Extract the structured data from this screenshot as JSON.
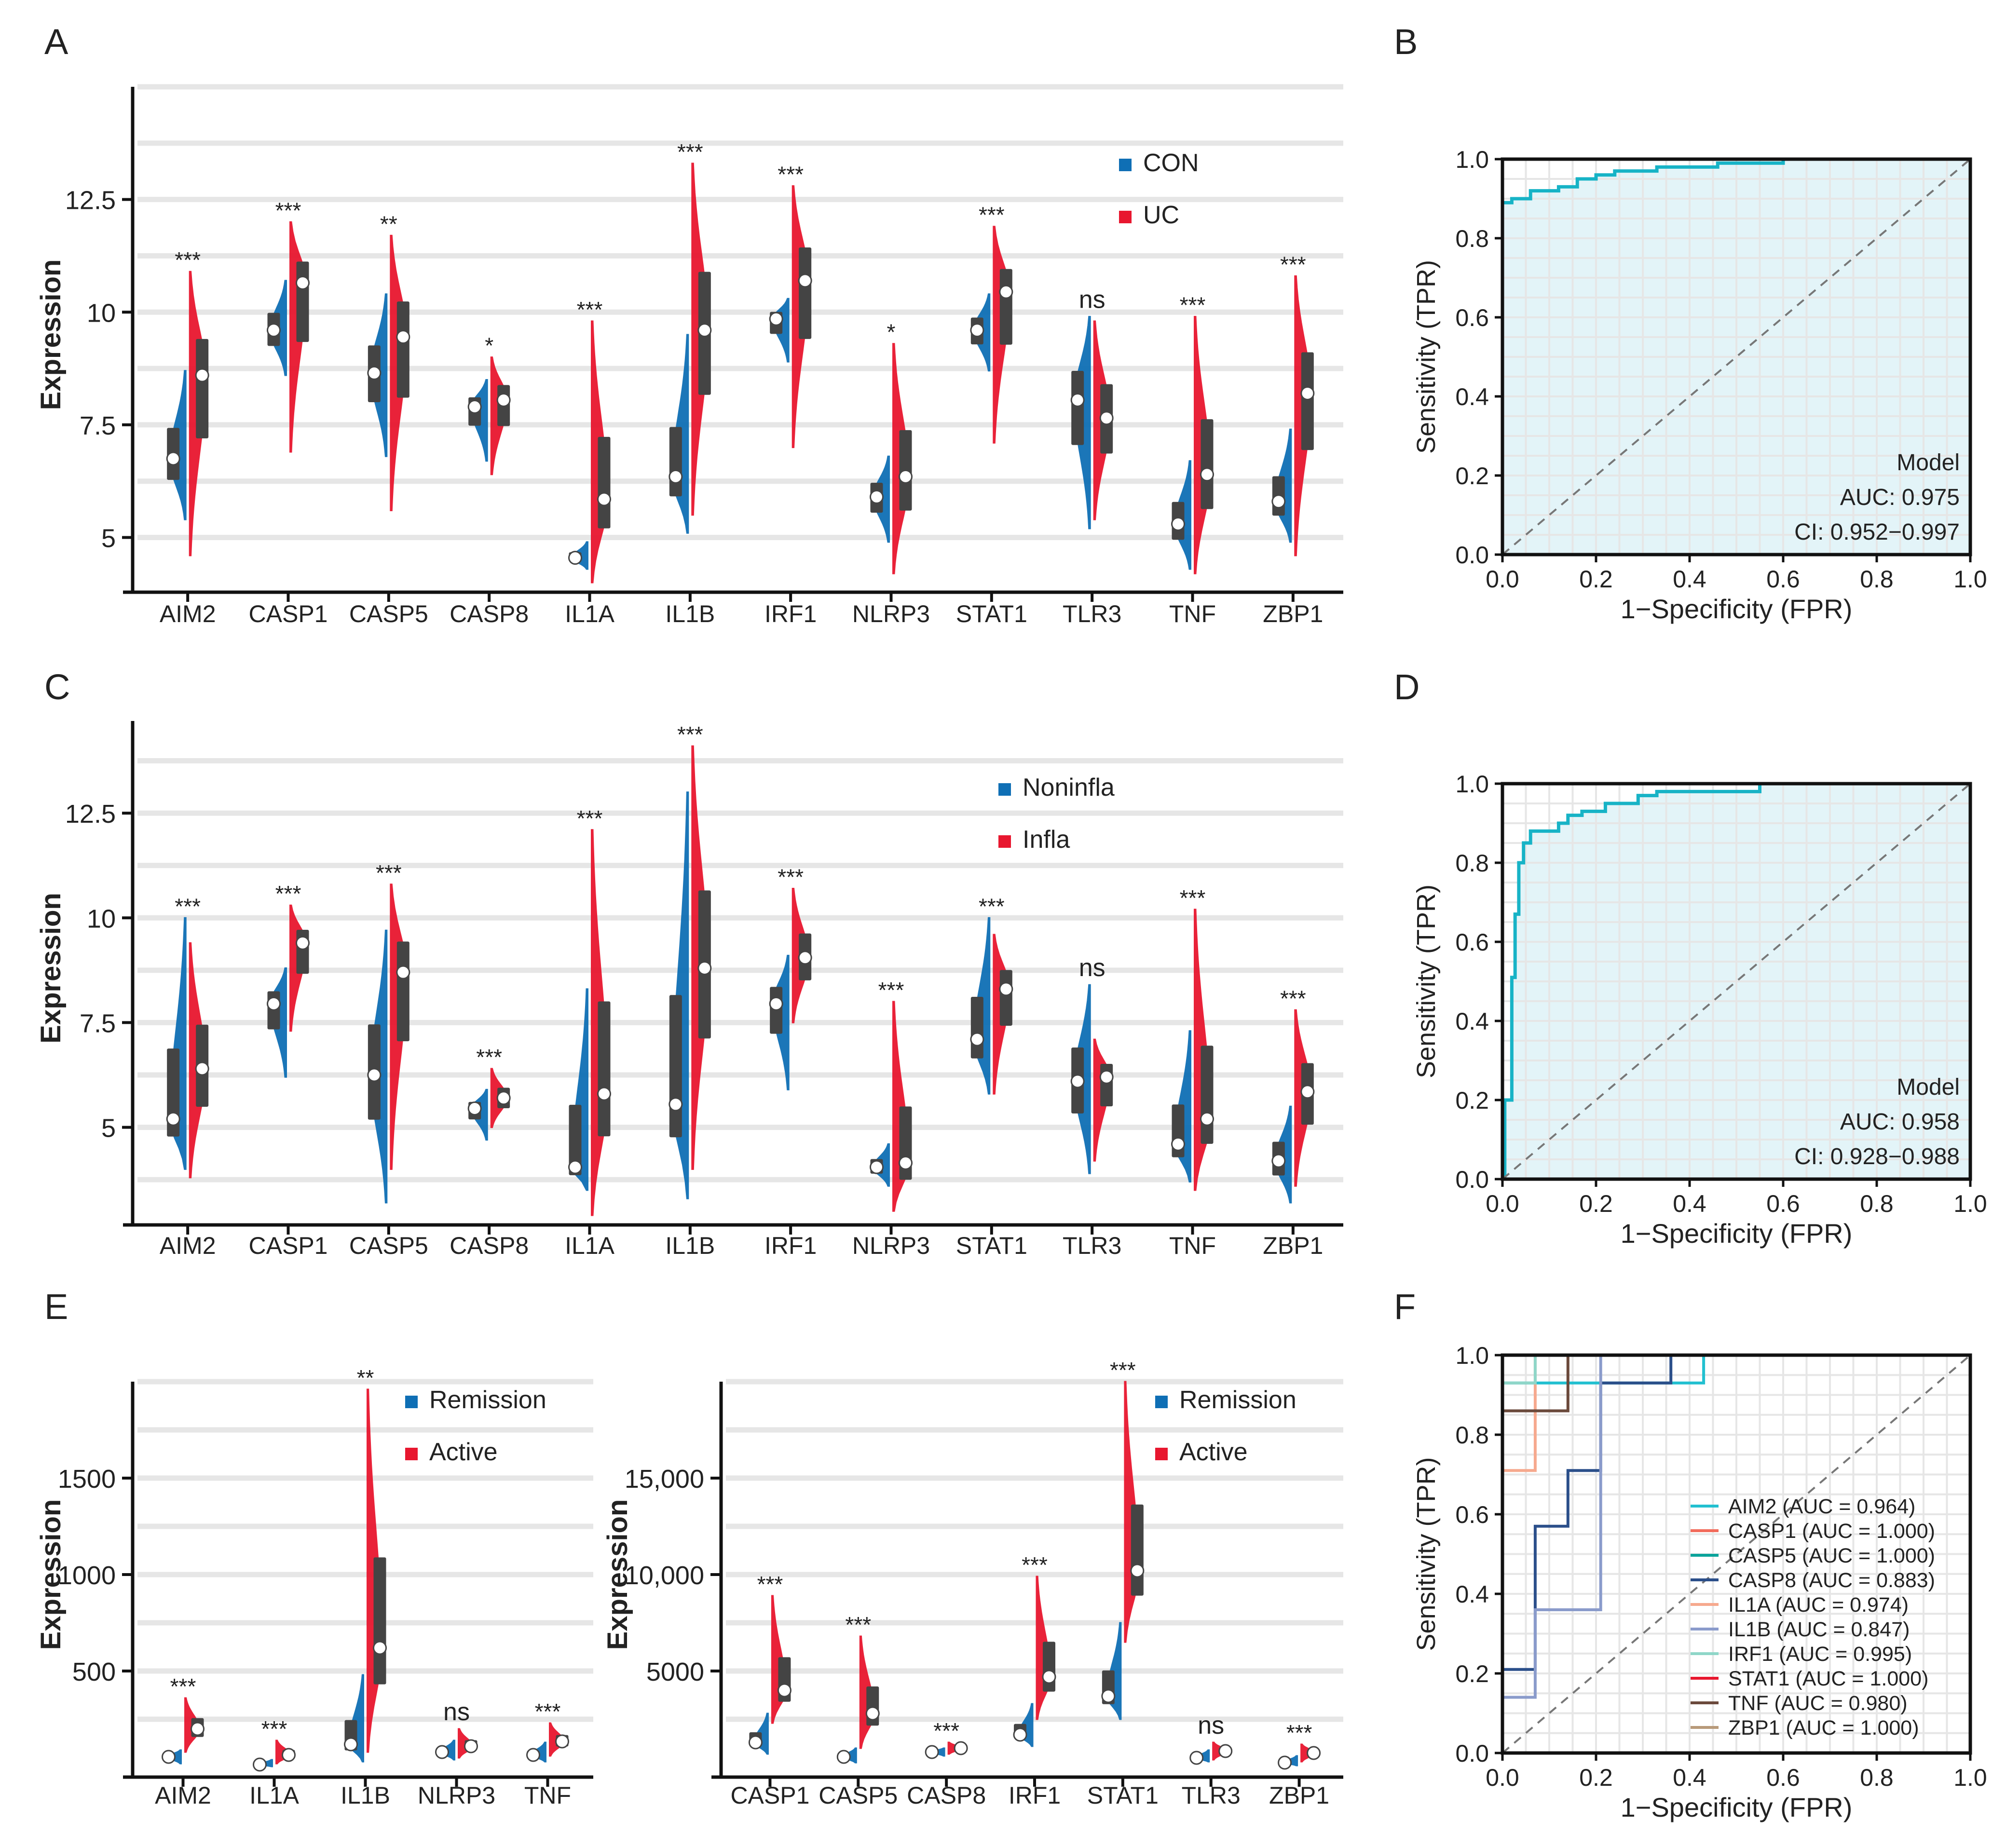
{
  "panels": {
    "A": {
      "letter": "A"
    },
    "B": {
      "letter": "B"
    },
    "C": {
      "letter": "C"
    },
    "D": {
      "letter": "D"
    },
    "E": {
      "letter": "E"
    },
    "F": {
      "letter": "F"
    }
  },
  "chart_data": [
    {
      "id": "A",
      "type": "split-violin",
      "ylabel": "Expression",
      "ylim": [
        4.0,
        15.0
      ],
      "yticks": [
        5,
        7.5,
        10,
        12.5
      ],
      "ytick_labels": [
        "5",
        "7.5",
        "10",
        "12.5"
      ],
      "legend": [
        "CON",
        "UC"
      ],
      "legend_position": "top-right",
      "group_colors": [
        "#0f6fb5",
        "#e8172f"
      ],
      "categories": [
        "AIM2",
        "CASP1",
        "CASP5",
        "CASP8",
        "IL1A",
        "IL1B",
        "IRF1",
        "NLRP3",
        "STAT1",
        "TLR3",
        "TNF",
        "ZBP1"
      ],
      "significance": [
        "***",
        "***",
        "**",
        "*",
        "***",
        "***",
        "***",
        "*",
        "***",
        "ns",
        "***",
        "***"
      ],
      "series": [
        {
          "name": "CON",
          "median": [
            6.75,
            9.6,
            8.65,
            7.9,
            4.55,
            6.35,
            9.85,
            5.9,
            9.6,
            8.05,
            5.3,
            5.8
          ],
          "min": [
            5.4,
            8.6,
            6.8,
            6.7,
            4.3,
            5.1,
            8.9,
            4.9,
            8.7,
            5.2,
            4.3,
            4.9
          ],
          "max": [
            8.7,
            10.7,
            10.4,
            8.5,
            4.9,
            9.5,
            10.3,
            6.8,
            10.4,
            9.9,
            6.7,
            7.4
          ]
        },
        {
          "name": "UC",
          "median": [
            8.6,
            10.65,
            9.45,
            8.05,
            5.85,
            9.6,
            10.7,
            6.35,
            10.45,
            7.65,
            6.4,
            8.2
          ],
          "min": [
            4.6,
            6.9,
            5.6,
            6.4,
            4.0,
            5.5,
            7.0,
            4.2,
            7.1,
            5.4,
            4.2,
            4.6
          ],
          "max": [
            10.9,
            12.0,
            11.7,
            9.0,
            9.8,
            13.3,
            12.8,
            9.3,
            11.9,
            9.8,
            9.9,
            10.8
          ]
        }
      ]
    },
    {
      "id": "B",
      "type": "roc",
      "xlabel": "1−Specificity (FPR)",
      "ylabel": "Sensitivity (TPR)",
      "xlim": [
        0,
        1
      ],
      "ylim": [
        0,
        1
      ],
      "ticks": [
        "0.0",
        "0.2",
        "0.4",
        "0.6",
        "0.8",
        "1.0"
      ],
      "annotation": [
        "Model",
        "AUC: 0.975",
        "CI: 0.952−0.997"
      ],
      "curve_color": "#17b3c6",
      "fill_color": "#e3f4f8",
      "curve": [
        [
          0,
          0
        ],
        [
          0,
          0.89
        ],
        [
          0.02,
          0.89
        ],
        [
          0.02,
          0.9
        ],
        [
          0.06,
          0.9
        ],
        [
          0.06,
          0.92
        ],
        [
          0.12,
          0.92
        ],
        [
          0.12,
          0.93
        ],
        [
          0.16,
          0.93
        ],
        [
          0.16,
          0.95
        ],
        [
          0.2,
          0.95
        ],
        [
          0.2,
          0.96
        ],
        [
          0.24,
          0.96
        ],
        [
          0.24,
          0.97
        ],
        [
          0.33,
          0.97
        ],
        [
          0.33,
          0.98
        ],
        [
          0.46,
          0.98
        ],
        [
          0.46,
          0.99
        ],
        [
          0.6,
          0.99
        ],
        [
          0.6,
          1.0
        ],
        [
          1.0,
          1.0
        ]
      ]
    },
    {
      "id": "C",
      "type": "split-violin",
      "ylabel": "Expression",
      "ylim": [
        2.9,
        14.7
      ],
      "yticks": [
        5,
        7.5,
        10,
        12.5
      ],
      "ytick_labels": [
        "5",
        "7.5",
        "10",
        "12.5"
      ],
      "legend": [
        "Noninfla",
        "Infla"
      ],
      "legend_position": "top-right",
      "group_colors": [
        "#0f6fb5",
        "#e8172f"
      ],
      "categories": [
        "AIM2",
        "CASP1",
        "CASP5",
        "CASP8",
        "IL1A",
        "IL1B",
        "IRF1",
        "NLRP3",
        "STAT1",
        "TLR3",
        "TNF",
        "ZBP1"
      ],
      "significance": [
        "***",
        "***",
        "***",
        "***",
        "***",
        "***",
        "***",
        "***",
        "***",
        "ns",
        "***",
        "***"
      ],
      "series": [
        {
          "name": "Noninfla",
          "median": [
            5.2,
            7.95,
            6.25,
            5.45,
            4.05,
            5.55,
            7.95,
            4.05,
            7.1,
            6.1,
            4.6,
            4.2
          ],
          "min": [
            4.0,
            6.2,
            3.2,
            4.7,
            3.5,
            3.3,
            5.9,
            3.6,
            5.8,
            3.9,
            3.7,
            3.2
          ],
          "max": [
            10.0,
            8.8,
            9.7,
            5.9,
            8.3,
            13.0,
            9.1,
            4.6,
            10.0,
            8.4,
            7.3,
            5.5
          ]
        },
        {
          "name": "Infla",
          "median": [
            6.4,
            9.4,
            8.7,
            5.7,
            5.8,
            8.8,
            9.05,
            4.15,
            8.3,
            6.2,
            5.2,
            5.85
          ],
          "min": [
            3.8,
            7.3,
            4.0,
            5.0,
            2.9,
            4.0,
            7.5,
            3.0,
            5.8,
            4.2,
            3.5,
            3.6
          ],
          "max": [
            9.4,
            10.3,
            10.8,
            6.4,
            12.1,
            14.1,
            10.7,
            8.0,
            9.6,
            7.1,
            10.2,
            7.8
          ]
        }
      ]
    },
    {
      "id": "D",
      "type": "roc",
      "xlabel": "1−Specificity (FPR)",
      "ylabel": "Sensitivity (TPR)",
      "xlim": [
        0,
        1
      ],
      "ylim": [
        0,
        1
      ],
      "ticks": [
        "0.0",
        "0.2",
        "0.4",
        "0.6",
        "0.8",
        "1.0"
      ],
      "annotation": [
        "Model",
        "AUC: 0.958",
        "CI: 0.928−0.988"
      ],
      "curve_color": "#17b3c6",
      "fill_color": "#e3f4f8",
      "curve": [
        [
          0,
          0
        ],
        [
          0.005,
          0.0
        ],
        [
          0.005,
          0.2
        ],
        [
          0.02,
          0.2
        ],
        [
          0.02,
          0.51
        ],
        [
          0.027,
          0.51
        ],
        [
          0.027,
          0.67
        ],
        [
          0.035,
          0.67
        ],
        [
          0.035,
          0.8
        ],
        [
          0.045,
          0.8
        ],
        [
          0.045,
          0.85
        ],
        [
          0.06,
          0.85
        ],
        [
          0.06,
          0.88
        ],
        [
          0.12,
          0.88
        ],
        [
          0.12,
          0.9
        ],
        [
          0.14,
          0.9
        ],
        [
          0.14,
          0.92
        ],
        [
          0.17,
          0.92
        ],
        [
          0.17,
          0.93
        ],
        [
          0.22,
          0.93
        ],
        [
          0.22,
          0.95
        ],
        [
          0.29,
          0.95
        ],
        [
          0.29,
          0.97
        ],
        [
          0.33,
          0.97
        ],
        [
          0.33,
          0.98
        ],
        [
          0.55,
          0.98
        ],
        [
          0.55,
          1.0
        ],
        [
          1.0,
          1.0
        ]
      ]
    },
    {
      "id": "E1",
      "type": "split-violin",
      "ylabel": "Expression",
      "ylim": [
        0,
        2000
      ],
      "yticks": [
        500,
        1000,
        1500
      ],
      "ytick_labels": [
        "500",
        "1000",
        "1500"
      ],
      "legend": [
        "Remission",
        "Active"
      ],
      "legend_position": "top-right",
      "group_colors": [
        "#0f6fb5",
        "#e8172f"
      ],
      "categories": [
        "AIM2",
        "IL1A",
        "IL1B",
        "NLRP3",
        "TNF"
      ],
      "significance": [
        "***",
        "***",
        "**",
        "ns",
        "***"
      ],
      "series": [
        {
          "name": "Remission",
          "median": [
            55,
            15,
            120,
            80,
            65
          ],
          "min": [
            20,
            5,
            30,
            40,
            30
          ],
          "max": [
            90,
            40,
            480,
            140,
            130
          ]
        },
        {
          "name": "Active",
          "median": [
            200,
            65,
            620,
            110,
            135
          ],
          "min": [
            80,
            20,
            80,
            50,
            60
          ],
          "max": [
            360,
            140,
            1960,
            200,
            230
          ]
        }
      ]
    },
    {
      "id": "E2",
      "type": "split-violin",
      "ylabel": "Expression",
      "ylim": [
        0,
        20000
      ],
      "yticks": [
        5000,
        10000,
        15000
      ],
      "ytick_labels": [
        "5000",
        "10,000",
        "15,000"
      ],
      "legend": [
        "Remission",
        "Active"
      ],
      "legend_position": "top-right",
      "group_colors": [
        "#0f6fb5",
        "#e8172f"
      ],
      "categories": [
        "CASP1",
        "CASP5",
        "CASP8",
        "IRF1",
        "STAT1",
        "TLR3",
        "ZBP1"
      ],
      "significance": [
        "***",
        "***",
        "***",
        "***",
        "***",
        "ns",
        "***"
      ],
      "series": [
        {
          "name": "Remission",
          "median": [
            1300,
            550,
            800,
            1700,
            3700,
            500,
            250
          ],
          "min": [
            700,
            250,
            600,
            1100,
            2500,
            300,
            100
          ],
          "max": [
            2800,
            1000,
            1000,
            3300,
            7500,
            900,
            600
          ]
        },
        {
          "name": "Active",
          "median": [
            4000,
            2800,
            1000,
            4700,
            10200,
            850,
            750
          ],
          "min": [
            2300,
            1000,
            700,
            2500,
            6500,
            400,
            300
          ],
          "max": [
            8900,
            6800,
            1300,
            9900,
            20000,
            1300,
            1200
          ]
        }
      ]
    },
    {
      "id": "F",
      "type": "roc-multi",
      "xlabel": "1−Specificity (FPR)",
      "ylabel": "Sensitivity (TPR)",
      "xlim": [
        0,
        1
      ],
      "ylim": [
        0,
        1
      ],
      "ticks": [
        "0.0",
        "0.2",
        "0.4",
        "0.6",
        "0.8",
        "1.0"
      ],
      "legend_position": "bottom-right",
      "series": [
        {
          "name": "AIM2 (AUC = 0.964)",
          "color": "#22c0d0",
          "points": [
            [
              0,
              0
            ],
            [
              0,
              0.93
            ],
            [
              0.43,
              0.93
            ],
            [
              0.43,
              1.0
            ],
            [
              1,
              1
            ]
          ]
        },
        {
          "name": "CASP1 (AUC = 1.000)",
          "color": "#f26b5b",
          "points": [
            [
              0,
              0
            ],
            [
              0,
              1.0
            ],
            [
              1,
              1
            ]
          ]
        },
        {
          "name": "CASP5 (AUC = 1.000)",
          "color": "#0aa39a",
          "points": [
            [
              0,
              0
            ],
            [
              0,
              1.0
            ],
            [
              1,
              1
            ]
          ]
        },
        {
          "name": "CASP8 (AUC = 0.883)",
          "color": "#2b4f8a",
          "points": [
            [
              0,
              0
            ],
            [
              0,
              0.21
            ],
            [
              0.07,
              0.21
            ],
            [
              0.07,
              0.57
            ],
            [
              0.14,
              0.57
            ],
            [
              0.14,
              0.71
            ],
            [
              0.21,
              0.71
            ],
            [
              0.21,
              0.93
            ],
            [
              0.36,
              0.93
            ],
            [
              0.36,
              1.0
            ],
            [
              1,
              1
            ]
          ]
        },
        {
          "name": "IL1A (AUC = 0.974)",
          "color": "#f6a98e",
          "points": [
            [
              0,
              0
            ],
            [
              0,
              0.71
            ],
            [
              0.07,
              0.71
            ],
            [
              0.07,
              0.93
            ],
            [
              0.07,
              1.0
            ],
            [
              1,
              1
            ]
          ]
        },
        {
          "name": "IL1B (AUC = 0.847)",
          "color": "#8a9bcb",
          "points": [
            [
              0,
              0
            ],
            [
              0,
              0.14
            ],
            [
              0.07,
              0.14
            ],
            [
              0.07,
              0.36
            ],
            [
              0.21,
              0.36
            ],
            [
              0.21,
              1.0
            ],
            [
              1,
              1
            ]
          ]
        },
        {
          "name": "IRF1 (AUC = 0.995)",
          "color": "#8fd6c8",
          "points": [
            [
              0,
              0
            ],
            [
              0,
              0.93
            ],
            [
              0.07,
              0.93
            ],
            [
              0.07,
              1.0
            ],
            [
              1,
              1
            ]
          ]
        },
        {
          "name": "STAT1 (AUC = 1.000)",
          "color": "#e8172f",
          "points": [
            [
              0,
              0
            ],
            [
              0,
              1.0
            ],
            [
              1,
              1
            ]
          ]
        },
        {
          "name": "TNF (AUC = 0.980)",
          "color": "#6b4a3c",
          "points": [
            [
              0,
              0
            ],
            [
              0,
              0.86
            ],
            [
              0.14,
              0.86
            ],
            [
              0.14,
              1.0
            ],
            [
              1,
              1
            ]
          ]
        },
        {
          "name": "ZBP1 (AUC = 1.000)",
          "color": "#b89a7a",
          "points": [
            [
              0,
              0
            ],
            [
              0,
              1.0
            ],
            [
              1,
              1
            ]
          ]
        }
      ]
    }
  ]
}
